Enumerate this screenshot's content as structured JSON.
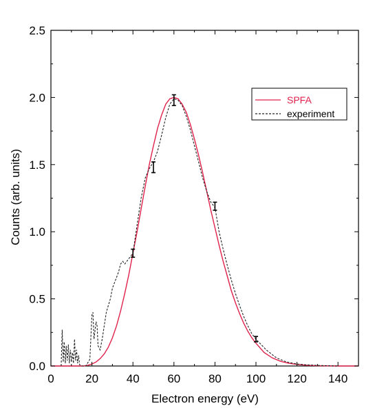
{
  "chart_data": {
    "type": "line",
    "xlabel": "Electron energy (eV)",
    "ylabel": "Counts (arb. units)",
    "xlim": [
      0,
      150
    ],
    "ylim": [
      0,
      2.5
    ],
    "x_ticks": [
      0,
      20,
      40,
      60,
      80,
      100,
      120,
      140
    ],
    "y_ticks": [
      0.0,
      0.5,
      1.0,
      1.5,
      2.0,
      2.5
    ],
    "x_tick_labels": [
      "0",
      "20",
      "40",
      "60",
      "80",
      "100",
      "120",
      "140"
    ],
    "y_tick_labels": [
      "0.0",
      "0.5",
      "1.0",
      "1.5",
      "2.0",
      "2.5"
    ],
    "grid": false,
    "legend_position": "top-right",
    "series": [
      {
        "name": "SPFA",
        "style": "solid",
        "color": "#e0204a",
        "x": [
          0,
          10,
          16,
          18,
          20,
          22,
          24,
          26,
          28,
          30,
          32,
          34,
          36,
          38,
          40,
          42,
          44,
          46,
          48,
          50,
          52,
          54,
          56,
          58,
          60,
          62,
          64,
          66,
          68,
          70,
          72,
          74,
          76,
          78,
          80,
          82,
          84,
          86,
          88,
          90,
          92,
          94,
          96,
          98,
          100,
          104,
          108,
          112,
          116,
          120,
          125,
          130,
          140,
          150
        ],
        "y": [
          0,
          0,
          0,
          0.005,
          0.015,
          0.03,
          0.055,
          0.09,
          0.14,
          0.21,
          0.3,
          0.41,
          0.54,
          0.68,
          0.84,
          1.0,
          1.17,
          1.34,
          1.5,
          1.64,
          1.77,
          1.87,
          1.95,
          1.99,
          2.0,
          1.99,
          1.95,
          1.89,
          1.8,
          1.69,
          1.57,
          1.44,
          1.3,
          1.16,
          1.03,
          0.9,
          0.78,
          0.67,
          0.56,
          0.47,
          0.39,
          0.32,
          0.26,
          0.21,
          0.17,
          0.1,
          0.06,
          0.035,
          0.02,
          0.012,
          0.005,
          0.002,
          0.0,
          0.0
        ]
      },
      {
        "name": "experiment",
        "style": "dashed",
        "color": "#222222",
        "x": [
          5,
          5.5,
          6,
          6.5,
          7,
          7.5,
          8,
          8.5,
          9,
          9.5,
          10,
          10.5,
          11,
          11.5,
          12,
          12.5,
          13,
          13.5,
          14,
          15,
          17,
          19,
          20,
          20.5,
          21,
          22,
          22.5,
          23,
          24,
          25,
          26,
          27,
          28,
          29,
          30,
          31,
          32,
          33,
          34,
          35,
          36,
          37,
          38,
          39,
          40,
          42,
          44,
          46,
          48,
          50,
          52,
          54,
          56,
          58,
          60,
          62,
          64,
          66,
          68,
          70,
          72,
          74,
          76,
          78,
          80,
          82,
          84,
          86,
          88,
          90,
          92,
          94,
          96,
          98,
          100,
          105,
          110,
          115,
          120,
          125,
          130,
          140
        ],
        "y": [
          0.0,
          0.27,
          0.03,
          0.18,
          0.02,
          0.15,
          0.04,
          0.16,
          0.02,
          0.12,
          0.03,
          0.1,
          0.02,
          0.2,
          0.04,
          0.12,
          0.02,
          0.08,
          0.01,
          0.0,
          0.0,
          0.05,
          0.38,
          0.4,
          0.2,
          0.33,
          0.3,
          0.15,
          0.12,
          0.2,
          0.3,
          0.4,
          0.45,
          0.5,
          0.58,
          0.62,
          0.66,
          0.7,
          0.76,
          0.78,
          0.76,
          0.78,
          0.8,
          0.82,
          0.84,
          1.05,
          1.25,
          1.4,
          1.47,
          1.52,
          1.6,
          1.72,
          1.85,
          1.95,
          1.99,
          1.98,
          1.94,
          1.86,
          1.76,
          1.64,
          1.52,
          1.4,
          1.3,
          1.22,
          1.18,
          1.0,
          0.87,
          0.75,
          0.64,
          0.54,
          0.45,
          0.37,
          0.3,
          0.24,
          0.2,
          0.12,
          0.06,
          0.03,
          0.015,
          0.008,
          0.004,
          0.0
        ]
      }
    ],
    "error_bars": [
      {
        "x": 40,
        "y": 0.84,
        "err": 0.03
      },
      {
        "x": 50,
        "y": 1.48,
        "err": 0.04
      },
      {
        "x": 60,
        "y": 1.98,
        "err": 0.04
      },
      {
        "x": 80,
        "y": 1.19,
        "err": 0.03
      },
      {
        "x": 100,
        "y": 0.2,
        "err": 0.02
      }
    ]
  }
}
